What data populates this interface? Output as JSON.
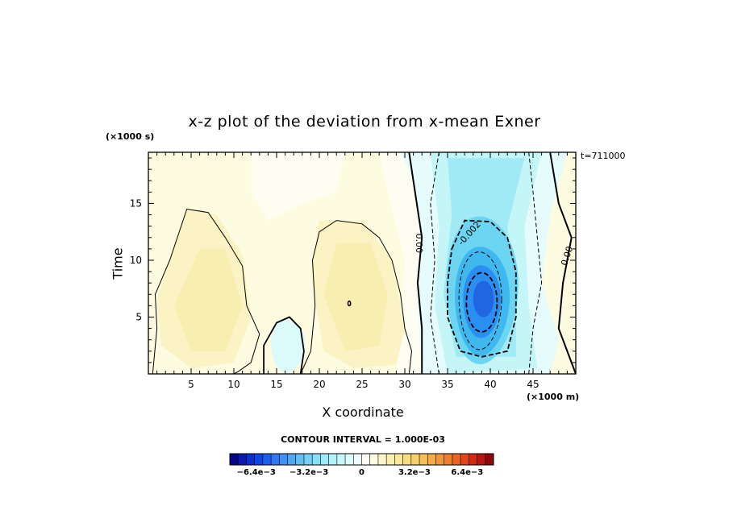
{
  "chart_data": {
    "type": "contour",
    "title": "x-z plot of the deviation from x-mean Exner",
    "xlabel": "X coordinate",
    "ylabel": "Time",
    "x_unit_label": "(×1000 m)",
    "y_unit_label": "(×1000 s)",
    "timestamp": "t=711000",
    "xlim": [
      0,
      50
    ],
    "ylim": [
      0,
      19.5
    ],
    "x_ticks": [
      5,
      10,
      15,
      20,
      25,
      30,
      35,
      40,
      45
    ],
    "x_tick_labels": [
      "5",
      "10",
      "15",
      "20",
      "25",
      "30",
      "35",
      "40",
      "45"
    ],
    "y_ticks": [
      5,
      10,
      15
    ],
    "y_tick_labels": [
      "5",
      "10",
      "15"
    ],
    "contour_interval_text": "CONTOUR INTERVAL = 1.000E-03",
    "contour_interval": 0.001,
    "contour_labels": [
      "0.00",
      "-0.002",
      "0.00"
    ],
    "colorbar": {
      "range": [
        -0.008,
        0.008
      ],
      "tick_values": [
        -0.0064,
        -0.0032,
        0,
        0.0032,
        0.0064
      ],
      "tick_labels": [
        "−6.4e−3",
        "−3.2e−3",
        "0",
        "3.2e−3",
        "6.4e−3"
      ]
    },
    "features": [
      {
        "kind": "positive",
        "center_x": 8,
        "center_y": 6.5,
        "approx_value": 0.0012
      },
      {
        "kind": "positive",
        "center_x": 24,
        "center_y": 6.5,
        "approx_value": 0.0012
      },
      {
        "kind": "negative",
        "center_x": 16,
        "center_y": 2.5,
        "approx_value": -0.0008
      },
      {
        "kind": "negative",
        "center_x": 39,
        "center_y": 6.5,
        "approx_value": -0.0055
      }
    ]
  }
}
